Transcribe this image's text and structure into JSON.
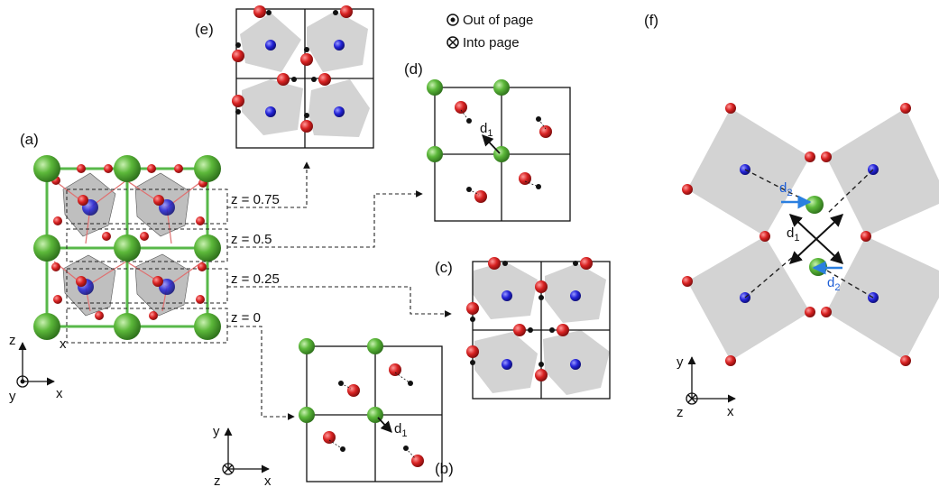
{
  "panel_labels": {
    "a": "(a)",
    "b": "(b)",
    "c": "(c)",
    "d": "(d)",
    "e": "(e)",
    "f": "(f)"
  },
  "legend": {
    "out_of_page": "Out of page",
    "into_page": "Into page"
  },
  "z_levels": [
    "z = 0.75",
    "z = 0.5",
    "z = 0.25",
    "z = 0"
  ],
  "axes": {
    "x": "x",
    "y": "y",
    "z": "z"
  },
  "distance_labels": {
    "d1_main": "d",
    "d1_sub": "1",
    "d2_main": "d",
    "d2_sub": "2"
  },
  "colors": {
    "A_site": "#4caf2f",
    "oxygen": "#d42020",
    "B_site": "#2020d0",
    "octahedron": "#d3d3d3",
    "d2_arrow": "#2a7fe0"
  }
}
